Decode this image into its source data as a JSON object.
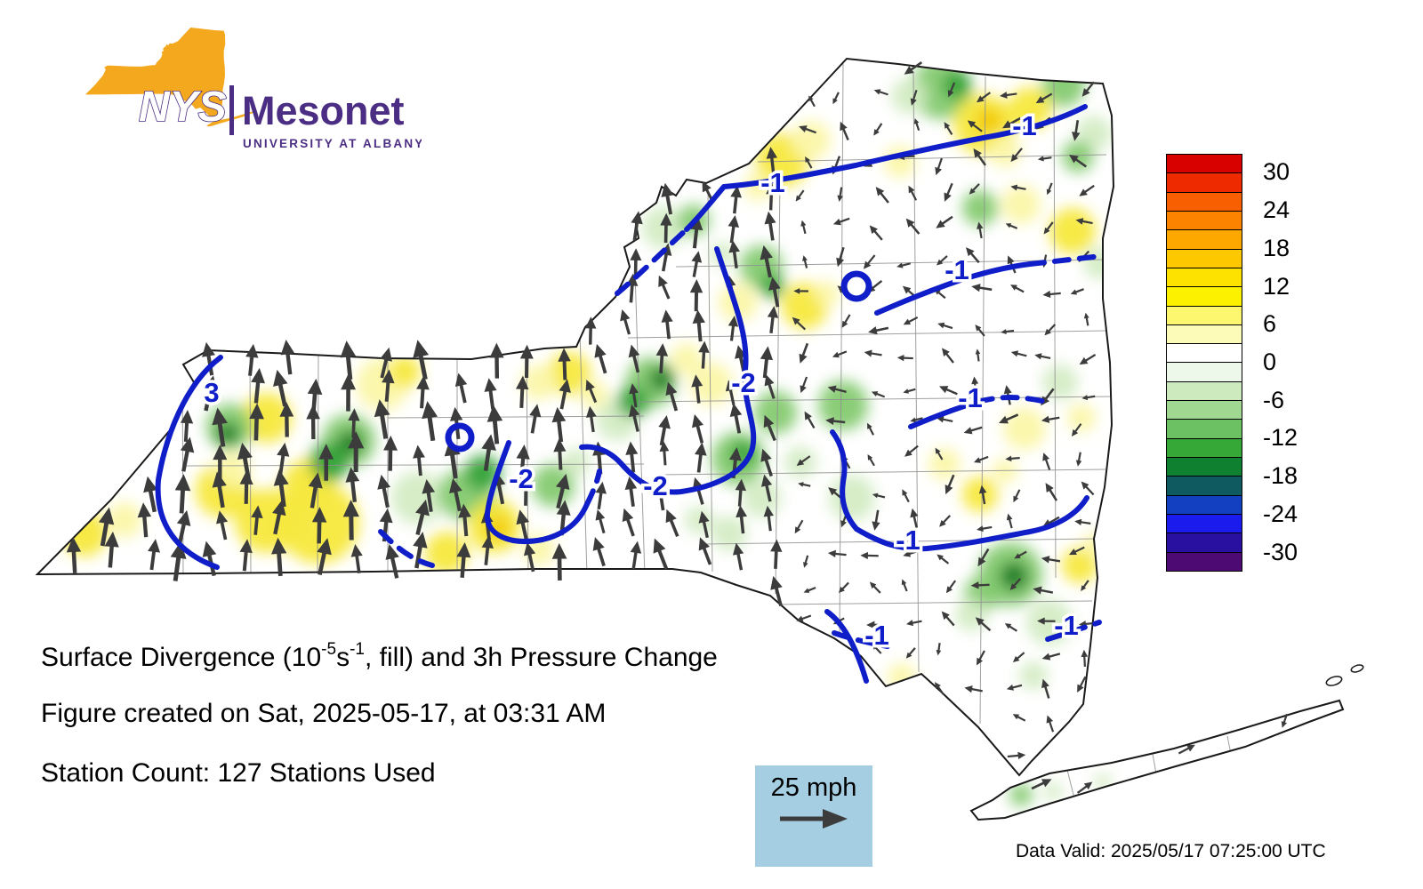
{
  "logo": {
    "acronym": "NYS",
    "name": "Mesonet",
    "affiliation": "UNIVERSITY AT ALBANY"
  },
  "title": {
    "pre": "Surface Divergence (10",
    "sup1": "-5",
    "mid": "s",
    "sup2": "-1",
    "post": ", fill) and 3h Pressure Change"
  },
  "created_line": "Figure created on Sat, 2025-05-17, at 03:31 AM",
  "station_line": "Station Count: 127 Stations Used",
  "data_valid_line": "Data Valid: 2025/05/17 07:25:00 UTC",
  "wind_legend": {
    "label": "25 mph"
  },
  "map": {
    "contour_labels": {
      "pos3": "3",
      "neg1": "-1",
      "neg2": "-2"
    }
  },
  "colors": {
    "logo_orange": "#F4A81D",
    "logo_purple": "#4B2E83",
    "contour_blue": "#0f1ec8",
    "wind_legend_bg": "#A6CEE3",
    "arrow_gray": "#3c3c3c",
    "state_outline": "#1a1a1a",
    "county_line": "#8f8f8f"
  },
  "chart_data": {
    "type": "heatmap",
    "title": "Surface Divergence (10^-5 s^-1, fill) and 3h Pressure Change",
    "region": "New York State",
    "fill_variable": "Surface Divergence (10^-5 s^-1)",
    "contour_variable": "3h Pressure Change",
    "colorbar": {
      "ticks": [
        30,
        24,
        18,
        12,
        6,
        0,
        -6,
        -12,
        -18,
        -24,
        -30
      ],
      "colors_top_to_bottom": [
        "#d90000",
        "#ee2a00",
        "#f85f00",
        "#fb8300",
        "#fda800",
        "#fdc800",
        "#fde200",
        "#fcf200",
        "#fcf76e",
        "#fdfbb8",
        "#ffffff",
        "#eef8ea",
        "#cdeabf",
        "#a0d892",
        "#6cc262",
        "#35a838",
        "#0f8030",
        "#0e5a60",
        "#1240c0",
        "#1b1bee",
        "#2a10a0",
        "#4c0a72"
      ]
    },
    "contour_levels_visible": [
      3,
      -1,
      -2
    ],
    "wind_vector_reference_mph": 25,
    "station_count": 127,
    "figure_created": "Sat, 2025-05-17, at 03:31 AM",
    "data_valid_utc": "2025/05/17 07:25:00 UTC"
  }
}
